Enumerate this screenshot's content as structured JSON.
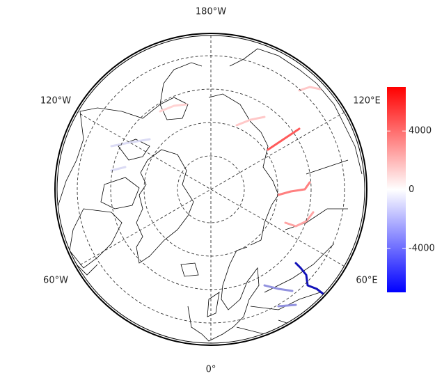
{
  "map": {
    "longitude_labels": [
      "180°W",
      "120°W",
      "120°E",
      "60°W",
      "60°E",
      "0°"
    ],
    "colorbar": {
      "range": [
        -7000,
        7000
      ],
      "ticks": [
        4000,
        0,
        -4000
      ]
    },
    "rivers": [
      {
        "value": -6500
      },
      {
        "value": -3000
      },
      {
        "value": 3500
      },
      {
        "value": 2500
      },
      {
        "value": 4500
      },
      {
        "value": 1500
      },
      {
        "value": -1000
      },
      {
        "value": 1200
      }
    ]
  }
}
